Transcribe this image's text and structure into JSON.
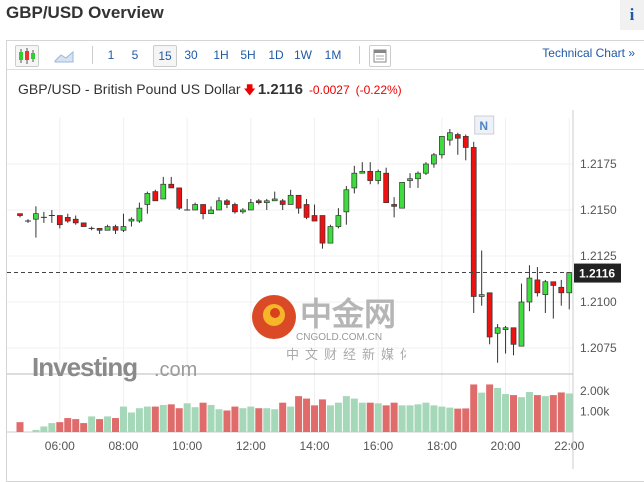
{
  "header": {
    "title": "GBP/USD Overview",
    "info_label": "i"
  },
  "toolbar": {
    "chart_types": [
      {
        "icon": "candlestick-icon",
        "selected": true
      },
      {
        "icon": "area-chart-icon",
        "selected": false
      }
    ],
    "intervals": [
      {
        "label": "1"
      },
      {
        "label": "5"
      },
      {
        "label": "15",
        "selected": true
      },
      {
        "label": "30"
      },
      {
        "label": "1H"
      },
      {
        "label": "5H"
      },
      {
        "label": "1D"
      },
      {
        "label": "1W"
      },
      {
        "label": "1M"
      }
    ],
    "layout_icon": "layout-icon",
    "technical_chart": "Technical Chart »"
  },
  "quote": {
    "name": "GBP/USD - British Pound US Dollar",
    "direction": "down",
    "last": "1.2116",
    "change": "-0.0027",
    "change_pct": "(-0.22%)"
  },
  "colors": {
    "up": "#3fdc3f",
    "down": "#ee1111",
    "vol_up": "#a5d8b8",
    "vol_down": "#e06b6b",
    "link": "#1f5aa6",
    "last_label_bg": "#222222"
  },
  "news_marker": "N",
  "branding": {
    "logo": "Investing.com",
    "watermark": "中金网",
    "watermark_sub": "CNGOLD.COM.CN",
    "watermark_tagline": "中文财经新媒体"
  },
  "chart_data": {
    "type": "candlestick",
    "interval": "15 min",
    "y_ticks": [
      "1.2175",
      "1.2150",
      "1.2125",
      "1.2100",
      "1.2075"
    ],
    "ylim": [
      1.206,
      1.22
    ],
    "x_ticks": [
      "06:00",
      "08:00",
      "10:00",
      "12:00",
      "14:00",
      "16:00",
      "18:00",
      "20:00",
      "22:00"
    ],
    "x_tick_index": [
      5,
      13,
      21,
      29,
      37,
      45,
      53,
      61,
      69
    ],
    "last_price": "1.2116",
    "volume_ticks": [
      "2.00k",
      "1.00k"
    ],
    "volume_max": 2500,
    "grid": true,
    "news_index": 57,
    "ohlc": [
      [
        1.2148,
        1.2148,
        1.2146,
        1.2147
      ],
      [
        1.2144,
        1.2145,
        1.2143,
        1.2144
      ],
      [
        1.2145,
        1.2152,
        1.2135,
        1.2148
      ],
      [
        1.2146,
        1.2149,
        1.2143,
        1.2146
      ],
      [
        1.2147,
        1.215,
        1.2143,
        1.2147
      ],
      [
        1.2147,
        1.2147,
        1.214,
        1.2142
      ],
      [
        1.2146,
        1.2148,
        1.2143,
        1.2144
      ],
      [
        1.2145,
        1.2147,
        1.2142,
        1.2143
      ],
      [
        1.2143,
        1.2143,
        1.2141,
        1.2141
      ],
      [
        1.214,
        1.2141,
        1.2139,
        1.214
      ],
      [
        1.214,
        1.214,
        1.2137,
        1.2139
      ],
      [
        1.2139,
        1.2142,
        1.2139,
        1.2141
      ],
      [
        1.2141,
        1.2142,
        1.2137,
        1.2139
      ],
      [
        1.2139,
        1.2148,
        1.2138,
        1.2141
      ],
      [
        1.2144,
        1.2146,
        1.2141,
        1.2145
      ],
      [
        1.2144,
        1.2154,
        1.2143,
        1.2151
      ],
      [
        1.2153,
        1.216,
        1.2148,
        1.2159
      ],
      [
        1.216,
        1.2161,
        1.2155,
        1.2155
      ],
      [
        1.2156,
        1.2168,
        1.2156,
        1.2164
      ],
      [
        1.2164,
        1.2168,
        1.2162,
        1.2162
      ],
      [
        1.2162,
        1.2162,
        1.215,
        1.2151
      ],
      [
        1.215,
        1.2156,
        1.215,
        1.215
      ],
      [
        1.215,
        1.2154,
        1.215,
        1.2153
      ],
      [
        1.2153,
        1.2153,
        1.2145,
        1.2148
      ],
      [
        1.2148,
        1.2152,
        1.2148,
        1.215
      ],
      [
        1.215,
        1.2157,
        1.215,
        1.2155
      ],
      [
        1.2155,
        1.2156,
        1.2151,
        1.2153
      ],
      [
        1.2153,
        1.2154,
        1.2148,
        1.2149
      ],
      [
        1.2149,
        1.2151,
        1.2148,
        1.215
      ],
      [
        1.215,
        1.2156,
        1.215,
        1.2154
      ],
      [
        1.2155,
        1.2156,
        1.2153,
        1.2154
      ],
      [
        1.2154,
        1.2156,
        1.215,
        1.2155
      ],
      [
        1.2155,
        1.216,
        1.2155,
        1.2156
      ],
      [
        1.2155,
        1.2156,
        1.215,
        1.2153
      ],
      [
        1.2153,
        1.2161,
        1.2153,
        1.2158
      ],
      [
        1.2158,
        1.2158,
        1.2148,
        1.2151
      ],
      [
        1.2153,
        1.2156,
        1.2145,
        1.2146
      ],
      [
        1.2147,
        1.2153,
        1.2144,
        1.2144
      ],
      [
        1.2147,
        1.2147,
        1.2129,
        1.2132
      ],
      [
        1.2132,
        1.2142,
        1.2132,
        1.2141
      ],
      [
        1.2141,
        1.2151,
        1.214,
        1.2147
      ],
      [
        1.2149,
        1.2163,
        1.2142,
        1.2161
      ],
      [
        1.2162,
        1.2174,
        1.2159,
        1.217
      ],
      [
        1.217,
        1.2176,
        1.217,
        1.2171
      ],
      [
        1.2171,
        1.2176,
        1.2164,
        1.2166
      ],
      [
        1.2166,
        1.2172,
        1.2164,
        1.2171
      ],
      [
        1.217,
        1.2173,
        1.2154,
        1.2154
      ],
      [
        1.2153,
        1.2157,
        1.2146,
        1.2152
      ],
      [
        1.2151,
        1.2165,
        1.2151,
        1.2165
      ],
      [
        1.2166,
        1.217,
        1.2162,
        1.2167
      ],
      [
        1.2167,
        1.2171,
        1.2162,
        1.217
      ],
      [
        1.217,
        1.2176,
        1.2169,
        1.2175
      ],
      [
        1.2175,
        1.2181,
        1.2173,
        1.218
      ],
      [
        1.218,
        1.219,
        1.2178,
        1.219
      ],
      [
        1.2188,
        1.2194,
        1.2185,
        1.2192
      ],
      [
        1.2191,
        1.2192,
        1.218,
        1.2189
      ],
      [
        1.219,
        1.2191,
        1.2177,
        1.2184
      ],
      [
        1.2184,
        1.2187,
        1.2094,
        1.2103
      ],
      [
        1.2103,
        1.2128,
        1.2098,
        1.2104
      ],
      [
        1.2105,
        1.2105,
        1.2077,
        1.2081
      ],
      [
        1.2083,
        1.2088,
        1.2067,
        1.2086
      ],
      [
        1.2085,
        1.2087,
        1.2072,
        1.2086
      ],
      [
        1.2086,
        1.2086,
        1.2071,
        1.2077
      ],
      [
        1.2076,
        1.211,
        1.2076,
        1.21
      ],
      [
        1.21,
        1.212,
        1.2095,
        1.2113
      ],
      [
        1.2112,
        1.2119,
        1.2103,
        1.2105
      ],
      [
        1.2104,
        1.2112,
        1.2094,
        1.2111
      ],
      [
        1.2111,
        1.2111,
        1.2091,
        1.2109
      ],
      [
        1.2108,
        1.2112,
        1.2098,
        1.2105
      ],
      [
        1.2105,
        1.2116,
        1.2096,
        1.2116
      ]
    ],
    "volume": [
      480,
      0,
      100,
      270,
      435,
      480,
      680,
      630,
      435,
      760,
      630,
      760,
      680,
      1240,
      950,
      1160,
      1240,
      1240,
      1320,
      1350,
      1160,
      1400,
      1210,
      1430,
      1320,
      1110,
      1050,
      1240,
      1160,
      1240,
      1160,
      1160,
      1110,
      1430,
      1240,
      1750,
      1630,
      1300,
      1590,
      1300,
      1430,
      1750,
      1630,
      1430,
      1430,
      1400,
      1300,
      1430,
      1300,
      1300,
      1350,
      1430,
      1300,
      1240,
      1190,
      1140,
      1150,
      2320,
      1920,
      2320,
      2150,
      1850,
      1800,
      1700,
      1950,
      1800,
      1750,
      1800,
      1930,
      1880
    ]
  }
}
